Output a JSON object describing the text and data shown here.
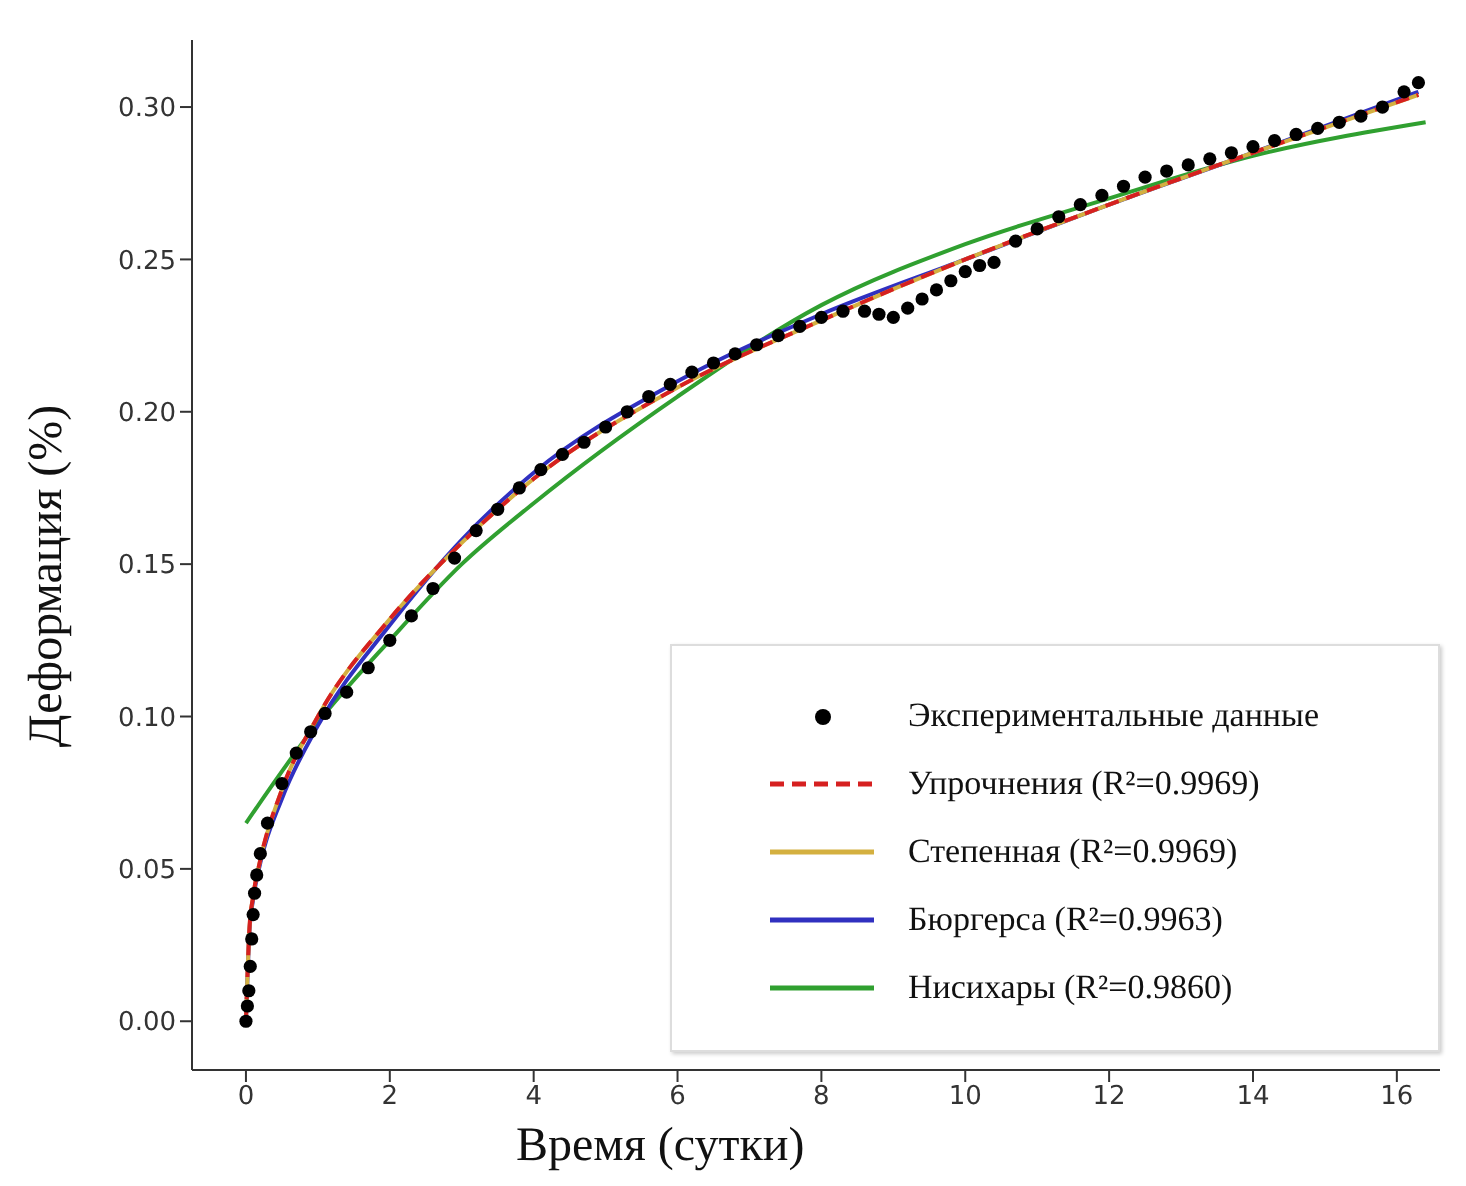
{
  "chart_data": {
    "type": "line",
    "xlabel": "Время (сутки)",
    "ylabel": "Деформация (%)",
    "xlim": [
      -0.75,
      16.6
    ],
    "xticks": [
      0,
      2,
      4,
      6,
      8,
      10,
      12,
      14,
      16
    ],
    "ylim": [
      -0.016,
      0.322
    ],
    "yticks": [
      {
        "value": 0,
        "label": "0.00"
      },
      {
        "value": 0.05,
        "label": "0.05"
      },
      {
        "value": 0.1,
        "label": "0.10"
      },
      {
        "value": 0.15,
        "label": "0.15"
      },
      {
        "value": 0.2,
        "label": "0.20"
      },
      {
        "value": 0.25,
        "label": "0.25"
      },
      {
        "value": 0.3,
        "label": "0.30"
      }
    ],
    "grid": false,
    "legend": "bottom right",
    "series": [
      {
        "name": "Экспериментальные данные",
        "type": "scatter",
        "marker": "circle",
        "color": "#000000",
        "x": [
          0,
          0.02,
          0.04,
          0.06,
          0.08,
          0.1,
          0.12,
          0.15,
          0.2,
          0.3,
          0.5,
          0.7,
          0.9,
          1.1,
          1.4,
          1.7,
          2.0,
          2.3,
          2.6,
          2.9,
          3.2,
          3.5,
          3.8,
          4.1,
          4.4,
          4.7,
          5.0,
          5.3,
          5.6,
          5.9,
          6.2,
          6.5,
          6.8,
          7.1,
          7.4,
          7.7,
          8.0,
          8.3,
          8.6,
          8.8,
          9.0,
          9.2,
          9.4,
          9.6,
          9.8,
          10.0,
          10.2,
          10.4,
          10.7,
          11.0,
          11.3,
          11.6,
          11.9,
          12.2,
          12.5,
          12.8,
          13.1,
          13.4,
          13.7,
          14.0,
          14.3,
          14.6,
          14.9,
          15.2,
          15.5,
          15.8,
          16.1,
          16.3
        ],
        "values": [
          0,
          0.005,
          0.01,
          0.018,
          0.027,
          0.035,
          0.042,
          0.048,
          0.055,
          0.065,
          0.078,
          0.088,
          0.095,
          0.101,
          0.108,
          0.116,
          0.125,
          0.133,
          0.142,
          0.152,
          0.161,
          0.168,
          0.175,
          0.181,
          0.186,
          0.19,
          0.195,
          0.2,
          0.205,
          0.209,
          0.213,
          0.216,
          0.219,
          0.222,
          0.225,
          0.228,
          0.231,
          0.233,
          0.233,
          0.232,
          0.231,
          0.234,
          0.237,
          0.24,
          0.243,
          0.246,
          0.248,
          0.249,
          0.256,
          0.26,
          0.264,
          0.268,
          0.271,
          0.274,
          0.277,
          0.279,
          0.281,
          0.283,
          0.285,
          0.287,
          0.289,
          0.291,
          0.293,
          0.295,
          0.297,
          0.3,
          0.305,
          0.308
        ]
      },
      {
        "name": "Упрочнения (R²=0.9969)",
        "line_style": "dashed",
        "marker": "none",
        "color": "#d62020",
        "x": [
          0,
          0.05,
          0.1,
          0.2,
          0.5,
          1,
          2,
          3,
          4,
          6,
          8,
          10,
          12,
          14,
          16.3
        ],
        "values": [
          0,
          0.031,
          0.041,
          0.053,
          0.076,
          0.1,
          0.132,
          0.157,
          0.178,
          0.208,
          0.23,
          0.25,
          0.268,
          0.285,
          0.304
        ]
      },
      {
        "name": "Степенная (R²=0.9969)",
        "line_style": "solid",
        "marker": "none",
        "color": "#d4b040",
        "x": [
          0,
          0.05,
          0.1,
          0.2,
          0.5,
          1,
          2,
          3,
          4,
          6,
          8,
          10,
          12,
          14,
          16.3
        ],
        "values": [
          0,
          0.031,
          0.041,
          0.053,
          0.076,
          0.1,
          0.132,
          0.157,
          0.178,
          0.208,
          0.23,
          0.25,
          0.268,
          0.285,
          0.304
        ]
      },
      {
        "name": "Бюргерса (R²=0.9963)",
        "line_style": "solid",
        "marker": "none",
        "color": "#3030c0",
        "x": [
          0,
          0.05,
          0.1,
          0.2,
          0.5,
          1,
          2,
          3,
          4,
          6,
          8,
          10,
          12,
          14,
          16.3
        ],
        "values": [
          0,
          0.03,
          0.04,
          0.052,
          0.073,
          0.097,
          0.13,
          0.158,
          0.18,
          0.21,
          0.232,
          0.25,
          0.268,
          0.285,
          0.305
        ]
      },
      {
        "name": "Нисихары (R²=0.9860)",
        "line_style": "solid",
        "marker": "none",
        "color": "#30a030",
        "x": [
          0,
          1,
          2,
          3,
          4,
          6,
          8,
          10,
          12,
          14,
          16.4
        ],
        "values": [
          0.065,
          0.098,
          0.125,
          0.15,
          0.17,
          0.205,
          0.235,
          0.255,
          0.27,
          0.284,
          0.295
        ]
      }
    ]
  }
}
